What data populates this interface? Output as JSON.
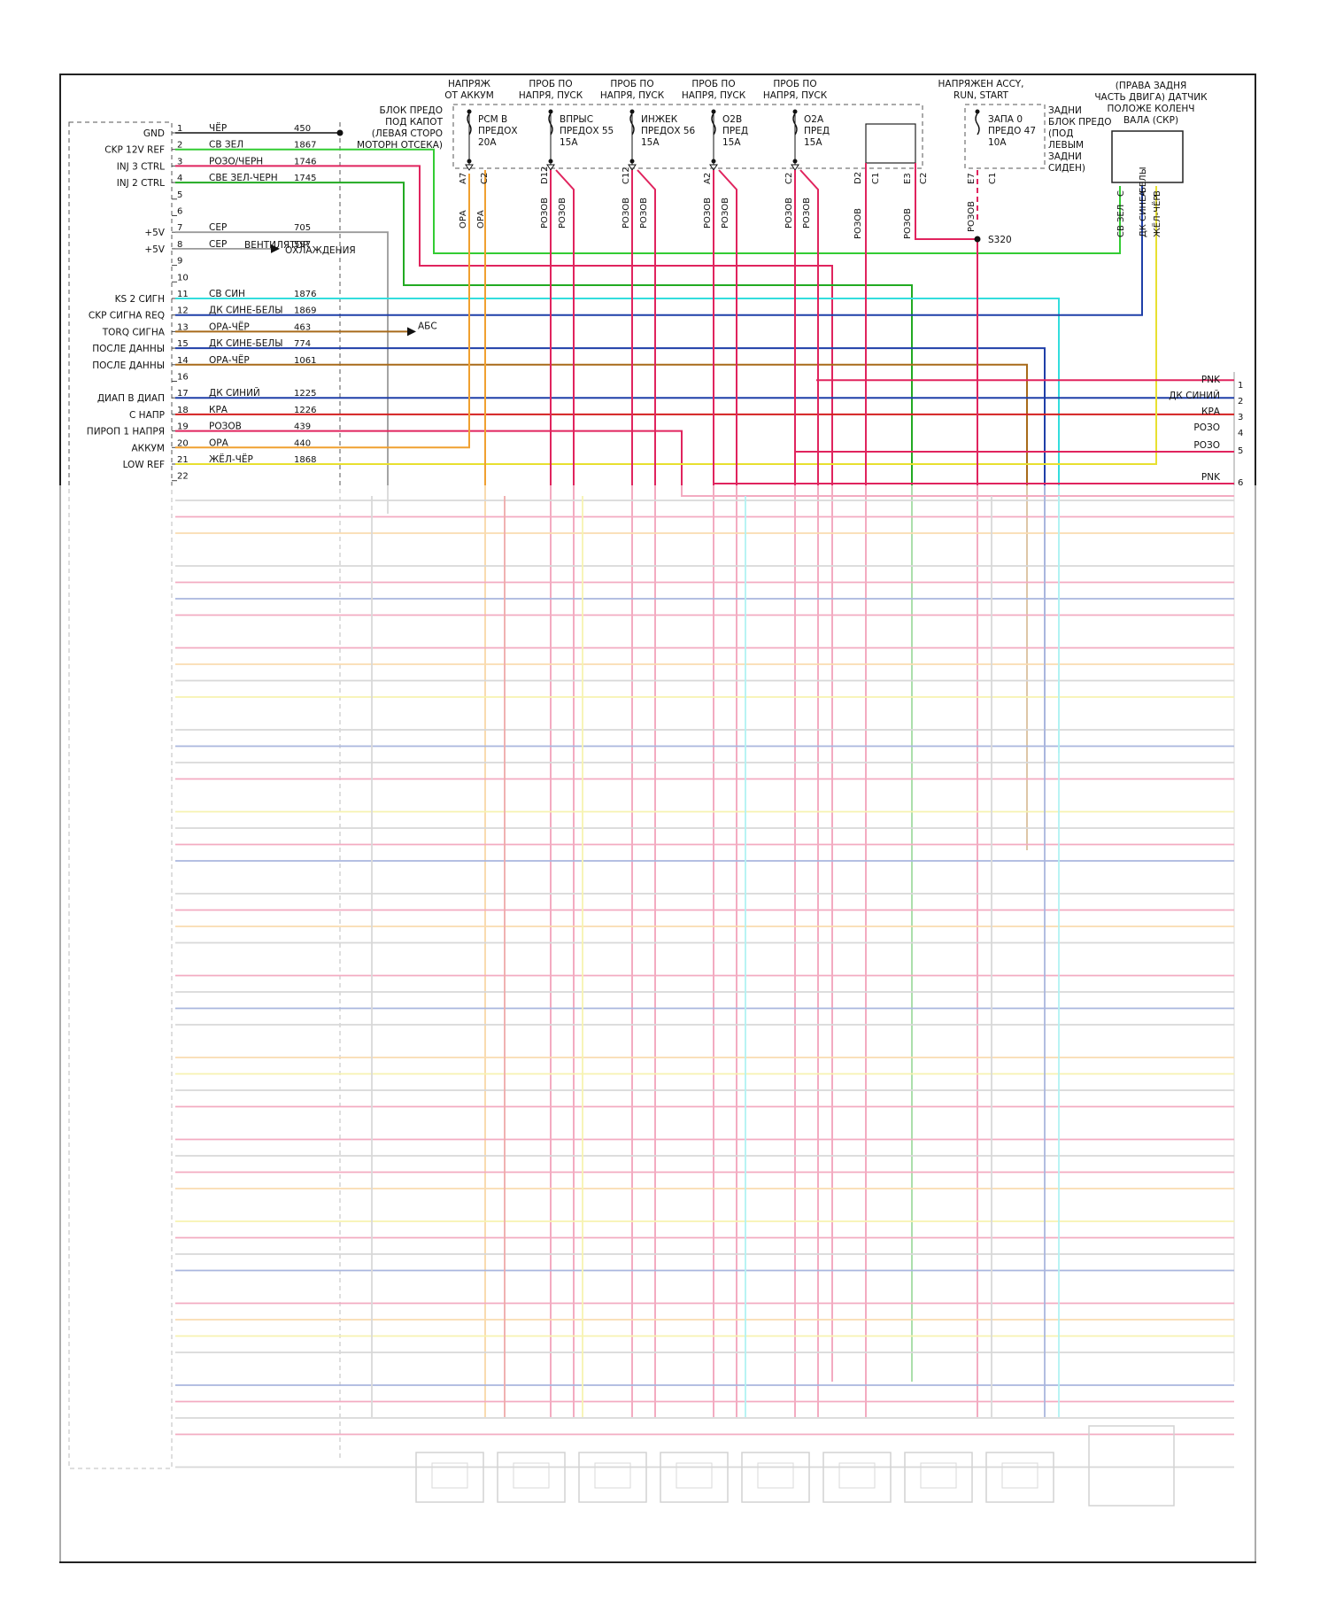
{
  "colors": {
    "black": "#111111",
    "green": "#33cc33",
    "pink": "#e0245e",
    "gray": "#9a9a9a",
    "cyan": "#33dddd",
    "blue": "#1f3fa8",
    "orange": "#f0a030",
    "brown": "#a86a1a",
    "red": "#d42020",
    "yellow": "#e8e030",
    "darkgreen": "#22aa22"
  },
  "pcm_pins": [
    {
      "num": "1",
      "label": "GND",
      "wire": "ЧЁР",
      "code": "450",
      "color": "black"
    },
    {
      "num": "2",
      "label": "CKP 12V REF",
      "wire": "СВ ЗЕЛ",
      "code": "1867",
      "color": "green"
    },
    {
      "num": "3",
      "label": "INJ 3 CTRL",
      "wire": "РОЗО/ЧЕРН",
      "code": "1746",
      "color": "pink"
    },
    {
      "num": "4",
      "label": "INJ 2 CTRL",
      "wire": "СВЕ ЗЕЛ-ЧЕРН",
      "code": "1745",
      "color": "darkgreen"
    },
    {
      "num": "5",
      "label": "",
      "wire": "",
      "code": "",
      "color": ""
    },
    {
      "num": "6",
      "label": "",
      "wire": "",
      "code": "",
      "color": ""
    },
    {
      "num": "7",
      "label": "+5V",
      "wire": "СЕР",
      "code": "705",
      "color": "gray"
    },
    {
      "num": "8",
      "label": "+5V",
      "wire": "СЕР",
      "code": "597",
      "color": "gray"
    },
    {
      "num": "9",
      "label": "",
      "wire": "",
      "code": "",
      "color": ""
    },
    {
      "num": "10",
      "label": "",
      "wire": "",
      "code": "",
      "color": ""
    },
    {
      "num": "11",
      "label": "KS 2 СИГН",
      "wire": "СВ СИН",
      "code": "1876",
      "color": "cyan"
    },
    {
      "num": "12",
      "label": "CKP СИГНА REQ",
      "wire": "ДК СИНЕ-БЕЛЫ",
      "code": "1869",
      "color": "blue"
    },
    {
      "num": "13",
      "label": "TORQ СИГНА",
      "wire": "ОРА-ЧЁР",
      "code": "463",
      "color": "brown"
    },
    {
      "num": "15",
      "label": "ПОСЛЕ ДАННЫ",
      "wire": "ДК СИНЕ-БЕЛЫ",
      "code": "774",
      "color": "blue"
    },
    {
      "num": "14",
      "label": "ПОСЛЕ ДАННЫ",
      "wire": "ОРА-ЧЁР",
      "code": "1061",
      "color": "brown"
    },
    {
      "num": "16",
      "label": "",
      "wire": "",
      "code": "",
      "color": ""
    },
    {
      "num": "17",
      "label": "ДИАП В ДИАП",
      "wire": "ДК СИНИЙ",
      "code": "1225",
      "color": "blue"
    },
    {
      "num": "18",
      "label": "С НАПР",
      "wire": "КРА",
      "code": "1226",
      "color": "red"
    },
    {
      "num": "19",
      "label": "ПИРОП 1 НАПРЯ",
      "wire": "РОЗОВ",
      "code": "439",
      "color": "pink"
    },
    {
      "num": "20",
      "label": "АККУМ",
      "wire": "ОРА",
      "code": "440",
      "color": "orange"
    },
    {
      "num": "21",
      "label": "LOW REF",
      "wire": "ЖЁЛ-ЧЁР",
      "code": "1868",
      "color": "yellow"
    },
    {
      "num": "22",
      "label": "",
      "wire": "",
      "code": "",
      "color": ""
    }
  ],
  "side_notes": {
    "fan": "ВЕНТИЛЯТОР ОХЛАЖДЕНИЯ",
    "abs": "АБС"
  },
  "fuse_block": {
    "title_lines": [
      "БЛОК ПРЕДО",
      "ПОД КАПОТ",
      "(ЛЕВАЯ СТОРО",
      "МОТОРН ОТСЕКА)"
    ],
    "fuses": [
      {
        "head": [
          "НАПРЯЖ",
          "ОТ АККУМ"
        ],
        "name": [
          "PCM В",
          "ПРЕДОХ",
          "20A"
        ],
        "pins": [
          "A7",
          "C2"
        ],
        "wires": [
          "ОРА",
          "ОРА"
        ]
      },
      {
        "head": [
          "ПРОБ ПО",
          "НАПРЯ, ПУСК"
        ],
        "name": [
          "ВПРЫС",
          "ПРЕДОХ 55",
          "15A"
        ],
        "pins": [
          "D12",
          ""
        ],
        "wires": [
          "РОЗОВ",
          "РОЗОВ"
        ]
      },
      {
        "head": [
          "ПРОБ ПО",
          "НАПРЯ, ПУСК"
        ],
        "name": [
          "ИНЖЕК",
          "ПРЕДОХ 56",
          "15A"
        ],
        "pins": [
          "C12",
          ""
        ],
        "wires": [
          "РОЗОВ",
          "РОЗОВ"
        ]
      },
      {
        "head": [
          "ПРОБ ПО",
          "НАПРЯ, ПУСК"
        ],
        "name": [
          "O2B",
          "ПРЕД",
          "15A"
        ],
        "pins": [
          "A2",
          ""
        ],
        "wires": [
          "РОЗОВ",
          "РОЗОВ"
        ]
      },
      {
        "head": [
          "ПРОБ ПО",
          "НАПРЯ, ПУСК"
        ],
        "name": [
          "O2A",
          "ПРЕД",
          "15A"
        ],
        "pins": [
          "C2",
          ""
        ],
        "wires": [
          "РОЗОВ",
          "РОЗОВ"
        ]
      }
    ],
    "bridge_pins": [
      "D2",
      "C1",
      "E3",
      "C2"
    ],
    "bridge_wires": [
      "РОЗОВ",
      "РОЗОВ"
    ]
  },
  "rear_fuse": {
    "head": [
      "НАПРЯЖЕН ACCY,",
      "RUN, START"
    ],
    "name": [
      "ЗАПА 0",
      "ПРЕДО 47",
      "10A"
    ],
    "pins": [
      "E7",
      "C1"
    ],
    "wire": "РОЗОВ",
    "splice": "S320",
    "desc": [
      "ЗАДНИ",
      "БЛОК ПРЕДО",
      "(ПОД",
      "ЛЕВЫМ",
      "ЗАДНИ",
      "СИДЕН)"
    ]
  },
  "ckp_sensor": {
    "desc": [
      "(ПРАВА ЗАДНЯ",
      "ЧАСТЬ ДВИГА) ДАТЧИК",
      "ПОЛОЖЕ КОЛЕНЧ",
      "ВАЛА (СКР)"
    ],
    "pins": [
      "C",
      "A",
      "B"
    ],
    "wires": [
      "СВ ЗЕЛ",
      "ДК СИНЕ-БЕЛЫ",
      "ЖЁЛ-ЧЁР"
    ]
  },
  "right_connector": [
    {
      "num": "1",
      "label": "PNK",
      "color": "pink"
    },
    {
      "num": "2",
      "label": "ДК СИНИЙ",
      "color": "blue"
    },
    {
      "num": "3",
      "label": "КРА",
      "color": "red"
    },
    {
      "num": "4",
      "label": "РОЗО",
      "color": "pink"
    },
    {
      "num": "5",
      "label": "РОЗО",
      "color": "pink"
    },
    {
      "num": "6",
      "label": "PNK",
      "color": "pink"
    }
  ]
}
